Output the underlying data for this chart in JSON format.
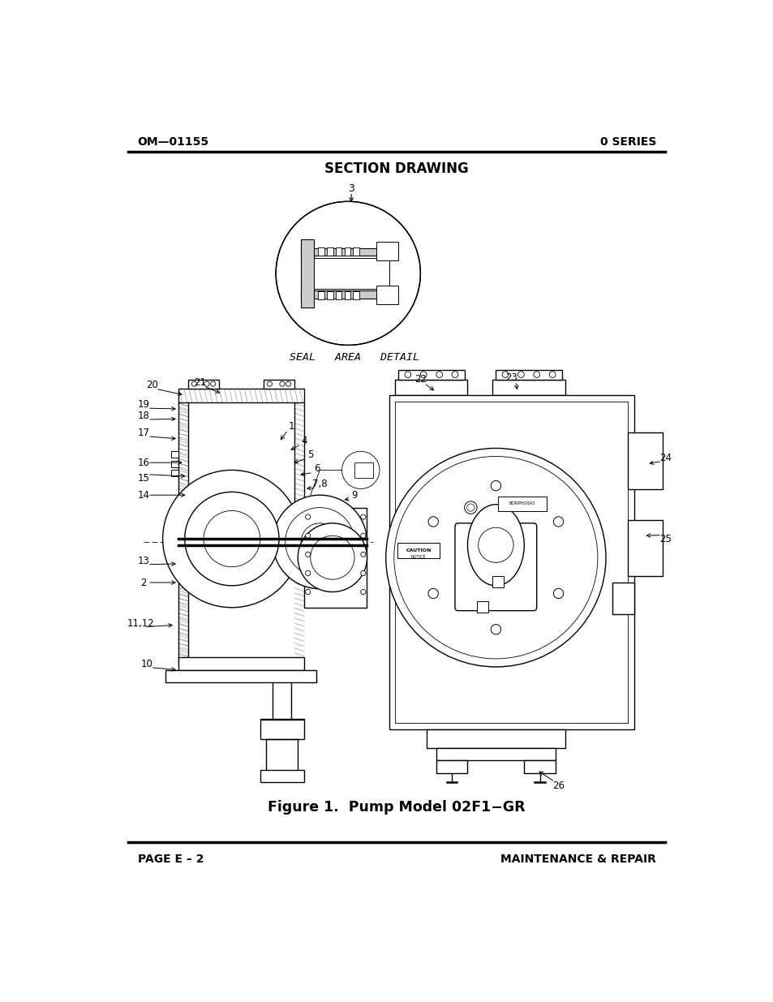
{
  "title_left": "OM—01155",
  "title_right": "0 SERIES",
  "section_title": "SECTION DRAWING",
  "figure_caption": "Figure 1.  Pump Model 02F1−GR",
  "footer_left": "PAGE E – 2",
  "footer_right": "MAINTENANCE & REPAIR",
  "bg_color": "#ffffff",
  "text_color": "#000000",
  "seal_area_label": "SEAL   AREA   DETAIL"
}
